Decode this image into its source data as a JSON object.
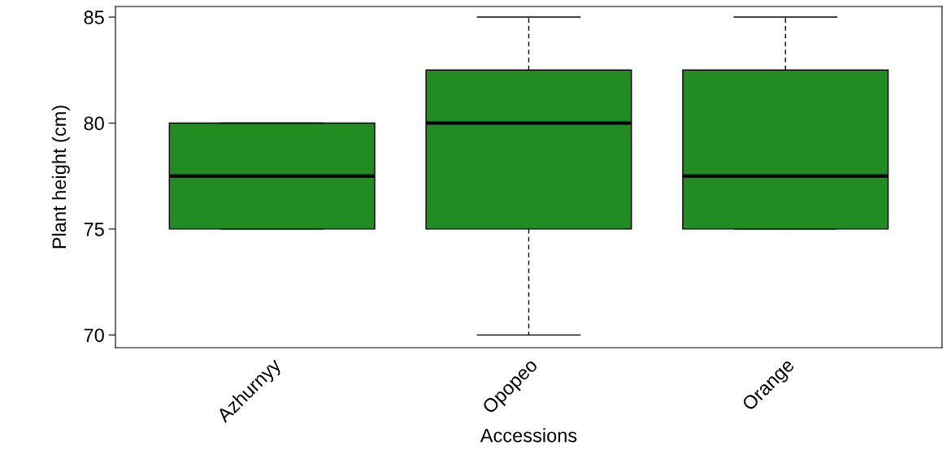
{
  "chart_data": {
    "type": "box",
    "xlabel": "Accessions",
    "ylabel": "Plant height (cm)",
    "categories": [
      "Azhurnyy",
      "Opopeo",
      "Orange"
    ],
    "boxes": [
      {
        "low": 75,
        "q1": 75,
        "median": 77.5,
        "q3": 80,
        "high": 80
      },
      {
        "low": 70,
        "q1": 75,
        "median": 80,
        "q3": 82.5,
        "high": 85
      },
      {
        "low": 75,
        "q1": 75,
        "median": 77.5,
        "q3": 82.5,
        "high": 85
      }
    ],
    "color": "#228b22",
    "ylim": [
      69.4,
      85.5
    ],
    "yticks": [
      70,
      75,
      80,
      85
    ]
  }
}
